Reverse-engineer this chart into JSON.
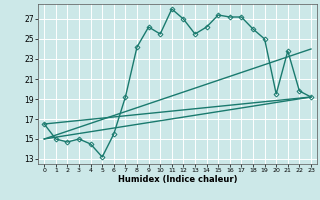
{
  "background_color": "#cce8e8",
  "grid_color": "#ffffff",
  "line_color": "#1a7a6e",
  "xlabel": "Humidex (Indice chaleur)",
  "ylim": [
    12.5,
    28.5
  ],
  "xlim": [
    -0.5,
    23.5
  ],
  "yticks": [
    13,
    15,
    17,
    19,
    21,
    23,
    25,
    27
  ],
  "xticks": [
    0,
    1,
    2,
    3,
    4,
    5,
    6,
    7,
    8,
    9,
    10,
    11,
    12,
    13,
    14,
    15,
    16,
    17,
    18,
    19,
    20,
    21,
    22,
    23
  ],
  "series": [
    {
      "x": [
        0,
        1,
        2,
        3,
        4,
        5,
        6,
        7,
        8,
        9,
        10,
        11,
        12,
        13,
        14,
        15,
        16,
        17,
        18,
        19,
        20,
        21,
        22,
        23
      ],
      "y": [
        16.5,
        15.0,
        14.7,
        15.0,
        14.5,
        13.2,
        15.5,
        19.2,
        24.2,
        26.2,
        25.5,
        28.0,
        27.0,
        25.5,
        26.2,
        27.4,
        27.2,
        27.2,
        26.0,
        25.0,
        19.5,
        23.8,
        19.8,
        19.2
      ],
      "marker": "D",
      "markersize": 2.5,
      "linewidth": 1.0,
      "linestyle": "-"
    },
    {
      "x": [
        0,
        23
      ],
      "y": [
        16.5,
        19.2
      ],
      "marker": null,
      "linewidth": 1.0,
      "linestyle": "-"
    },
    {
      "x": [
        0,
        23
      ],
      "y": [
        15.0,
        19.2
      ],
      "marker": null,
      "linewidth": 1.0,
      "linestyle": "-"
    },
    {
      "x": [
        0,
        23
      ],
      "y": [
        15.0,
        24.0
      ],
      "marker": null,
      "linewidth": 1.0,
      "linestyle": "-"
    }
  ]
}
